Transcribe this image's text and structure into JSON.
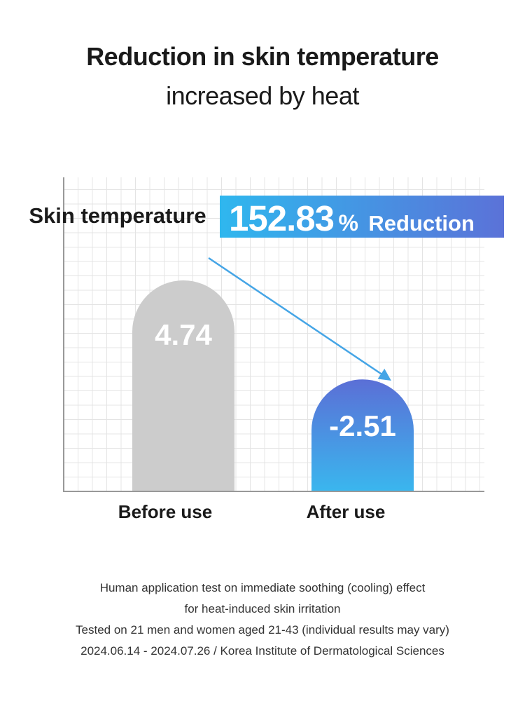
{
  "header": {
    "title": "Reduction in skin temperature",
    "subtitle": "increased by heat"
  },
  "chart_data": {
    "type": "bar",
    "metric_label": "Skin temperature",
    "categories": [
      "Before use",
      "After use"
    ],
    "values": [
      4.74,
      -2.51
    ],
    "value_labels": [
      "4.74",
      "-2.51"
    ],
    "callout": {
      "number": "152.83",
      "unit": "%",
      "text": "Reduction"
    },
    "grid": true,
    "colors": {
      "before_bar": "#cccccc",
      "after_bar_top": "#5b6fd6",
      "after_bar_bottom": "#3ab6ee",
      "callout_left": "#2fb7ee",
      "callout_right": "#5b72d8",
      "arrow": "#45a5e6",
      "grid": "#e4e4e4",
      "axis": "#999999"
    }
  },
  "footnotes": [
    "Human application test on immediate soothing (cooling) effect",
    "for heat-induced skin irritation",
    "Tested on 21 men and women aged 21-43 (individual results may vary)",
    "2024.06.14 - 2024.07.26 / Korea Institute of Dermatological Sciences"
  ]
}
